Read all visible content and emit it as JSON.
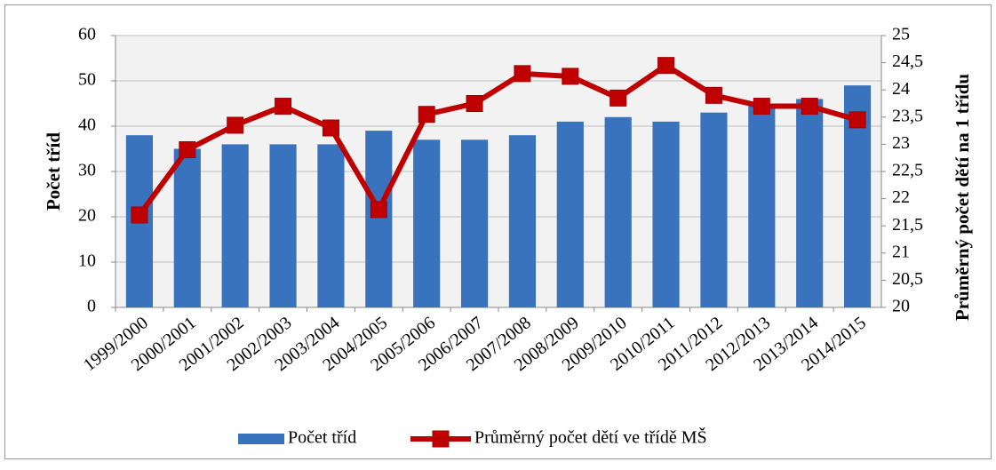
{
  "chart_data": {
    "type": "bar",
    "categories": [
      "1999/2000",
      "2000/2001",
      "2001/2002",
      "2002/2003",
      "2003/2004",
      "2004/2005",
      "2005/2006",
      "2006/2007",
      "2007/2008",
      "2008/2009",
      "2009/2010",
      "2010/2011",
      "2011/2012",
      "2012/2013",
      "2013/2014",
      "2014/2015"
    ],
    "series": [
      {
        "name": "Počet tříd",
        "type": "bar",
        "color": "#3a73bd",
        "values": [
          38,
          35,
          36,
          36,
          36,
          39,
          37,
          37,
          38,
          41,
          42,
          41,
          43,
          45,
          46,
          49
        ]
      },
      {
        "name": "Průměrný počet dětí ve třídě MŠ",
        "type": "line",
        "axis": "y2",
        "color": "#c00000",
        "values": [
          21.7,
          22.9,
          23.35,
          23.7,
          23.3,
          21.8,
          23.55,
          23.75,
          24.3,
          24.25,
          23.85,
          24.45,
          23.9,
          23.7,
          23.7,
          23.45
        ]
      }
    ],
    "ylabel": "Počet tříd",
    "y2label": "Průměrný počet dětí na 1 třídu",
    "ylim": [
      0,
      60
    ],
    "yticks": [
      0,
      10,
      20,
      30,
      40,
      50,
      60
    ],
    "y2lim": [
      20,
      25
    ],
    "y2ticks": [
      20,
      {
        "value": 20.5,
        "label": "20,5"
      },
      21,
      {
        "value": 21.5,
        "label": "21,5"
      },
      22,
      {
        "value": 22.5,
        "label": "22,5"
      },
      23,
      {
        "value": 23.5,
        "label": "23,5"
      },
      24,
      {
        "value": 24.5,
        "label": "24,5"
      },
      25
    ],
    "grid": true,
    "legend": "bottom"
  }
}
